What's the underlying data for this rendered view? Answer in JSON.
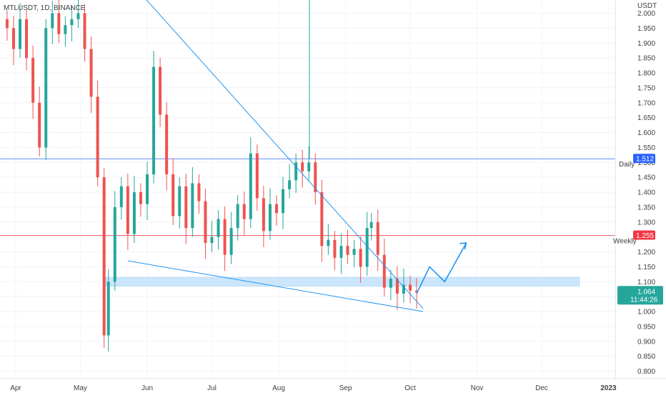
{
  "header": {
    "symbol_text": "MTLUSDT, 1D, BINANCE"
  },
  "price_axis": {
    "currency": "USDT",
    "ticks": [
      "2.000",
      "1.950",
      "1.900",
      "1.850",
      "1.800",
      "1.750",
      "1.700",
      "1.650",
      "1.600",
      "1.550",
      "1.500",
      "1.450",
      "1.400",
      "1.350",
      "1.300",
      "1.250",
      "1.200",
      "1.150",
      "1.100",
      "1.050",
      "1.000",
      "0.950",
      "0.900",
      "0.850",
      "0.800"
    ]
  },
  "time_axis": {
    "ticks": [
      "Apr",
      "May",
      "Jun",
      "Jul",
      "Aug",
      "Sep",
      "Oct",
      "Nov",
      "Dec",
      "2023"
    ]
  },
  "levels": {
    "daily": {
      "label": "Daily",
      "value_label": "1.512",
      "color": "#2962ff"
    },
    "weekly": {
      "label": "Weekly",
      "value_label": "1.255",
      "color": "#f23645"
    }
  },
  "current_price": {
    "value_label": "1.064",
    "countdown": "11:44:26",
    "color": "#26a69a"
  },
  "colors": {
    "up": "#26a69a",
    "down": "#ef5350",
    "trendline": "#2196f3",
    "zone": "#bbdefb"
  },
  "chart_data": {
    "type": "candlestick",
    "title": "MTLUSDT, 1D, BINANCE",
    "y_unit": "USDT",
    "ylim": [
      0.77,
      2.02
    ],
    "x_range": [
      "2022-03-27",
      "2023-01-01"
    ],
    "x_ticks": [
      "Apr",
      "May",
      "Jun",
      "Jul",
      "Aug",
      "Sep",
      "Oct",
      "Nov",
      "Dec",
      "2023"
    ],
    "daily_resistance": 1.512,
    "weekly_level": 1.255,
    "last_price": 1.064,
    "support_zone": [
      1.085,
      1.115
    ],
    "falling_wedge": {
      "upper": [
        [
          "2022-05-31",
          2.05
        ],
        [
          "2022-10-07",
          1.01
        ]
      ],
      "lower": [
        [
          "2022-05-23",
          1.17
        ],
        [
          "2022-10-07",
          1.0
        ]
      ]
    },
    "projected_path": [
      [
        "2022-10-04",
        1.06
      ],
      [
        "2022-10-10",
        1.15
      ],
      [
        "2022-10-17",
        1.1
      ],
      [
        "2022-10-27",
        1.23
      ]
    ],
    "closes": [
      [
        "2022-03-28",
        1.95
      ],
      [
        "2022-03-31",
        1.88
      ],
      [
        "2022-04-03",
        1.98
      ],
      [
        "2022-04-06",
        1.85
      ],
      [
        "2022-04-09",
        1.7
      ],
      [
        "2022-04-12",
        1.55
      ],
      [
        "2022-04-15",
        1.95
      ],
      [
        "2022-04-18",
        2.0
      ],
      [
        "2022-04-21",
        1.93
      ],
      [
        "2022-04-24",
        1.96
      ],
      [
        "2022-04-27",
        1.98
      ],
      [
        "2022-04-30",
        2.0
      ],
      [
        "2022-05-03",
        1.88
      ],
      [
        "2022-05-06",
        1.72
      ],
      [
        "2022-05-09",
        1.45
      ],
      [
        "2022-05-12",
        0.92
      ],
      [
        "2022-05-14",
        1.1
      ],
      [
        "2022-05-17",
        1.35
      ],
      [
        "2022-05-20",
        1.42
      ],
      [
        "2022-05-23",
        1.26
      ],
      [
        "2022-05-26",
        1.4
      ],
      [
        "2022-05-29",
        1.36
      ],
      [
        "2022-06-01",
        1.46
      ],
      [
        "2022-06-04",
        1.82
      ],
      [
        "2022-06-07",
        1.66
      ],
      [
        "2022-06-10",
        1.46
      ],
      [
        "2022-06-13",
        1.32
      ],
      [
        "2022-06-16",
        1.42
      ],
      [
        "2022-06-19",
        1.28
      ],
      [
        "2022-06-22",
        1.43
      ],
      [
        "2022-06-25",
        1.37
      ],
      [
        "2022-06-28",
        1.23
      ],
      [
        "2022-07-01",
        1.25
      ],
      [
        "2022-07-04",
        1.31
      ],
      [
        "2022-07-07",
        1.19
      ],
      [
        "2022-07-10",
        1.28
      ],
      [
        "2022-07-13",
        1.36
      ],
      [
        "2022-07-16",
        1.31
      ],
      [
        "2022-07-19",
        1.53
      ],
      [
        "2022-07-22",
        1.38
      ],
      [
        "2022-07-25",
        1.27
      ],
      [
        "2022-07-28",
        1.36
      ],
      [
        "2022-07-31",
        1.33
      ],
      [
        "2022-08-03",
        1.41
      ],
      [
        "2022-08-06",
        1.44
      ],
      [
        "2022-08-09",
        1.5
      ],
      [
        "2022-08-12",
        1.47
      ],
      [
        "2022-08-15",
        1.5
      ],
      [
        "2022-08-18",
        1.4
      ],
      [
        "2022-08-21",
        1.22
      ],
      [
        "2022-08-24",
        1.24
      ],
      [
        "2022-08-27",
        1.18
      ],
      [
        "2022-08-30",
        1.22
      ],
      [
        "2022-09-02",
        1.19
      ],
      [
        "2022-09-05",
        1.21
      ],
      [
        "2022-09-08",
        1.15
      ],
      [
        "2022-09-11",
        1.28
      ],
      [
        "2022-09-13",
        1.3
      ],
      [
        "2022-09-16",
        1.19
      ],
      [
        "2022-09-19",
        1.08
      ],
      [
        "2022-09-22",
        1.11
      ],
      [
        "2022-09-25",
        1.06
      ],
      [
        "2022-09-28",
        1.09
      ],
      [
        "2022-10-01",
        1.07
      ],
      [
        "2022-10-04",
        1.064
      ]
    ]
  }
}
